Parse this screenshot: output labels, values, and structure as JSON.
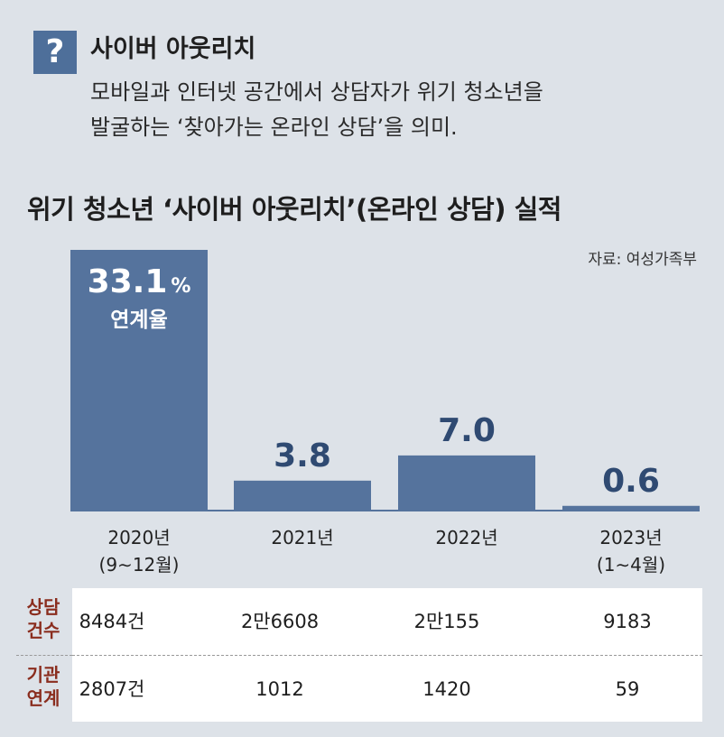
{
  "explainer": {
    "icon_char": "?",
    "term": "사이버 아웃리치",
    "definition_line1": "모바일과 인터넷  공간에서 상담자가 위기 청소년을",
    "definition_line2": "발굴하는 ‘찾아가는 온라인 상담’을 의미."
  },
  "source": "자료: 여성가족부",
  "chart_data": {
    "type": "bar",
    "title": "위기 청소년 ‘사이버 아웃리치’(온라인 상담) 실적",
    "categories": [
      [
        "2020년",
        "(9∼12월)"
      ],
      [
        "2021년"
      ],
      [
        "2022년"
      ],
      [
        "2023년",
        "(1∼4월)"
      ]
    ],
    "values": [
      33.1,
      3.8,
      7.0,
      0.6
    ],
    "value_labels": [
      "33.1",
      "3.8",
      "7.0",
      "0.6"
    ],
    "unit_first": "%",
    "first_bar_sublabel": "연계율",
    "ylim": [
      0,
      33.1
    ],
    "grid": false,
    "colors": {
      "bar": "#55739d",
      "label": "#2f4a72"
    }
  },
  "table": {
    "rows": [
      {
        "label": [
          "상담",
          "건수"
        ],
        "values": [
          "8484건",
          "2만6608",
          "2만155",
          "9183"
        ]
      },
      {
        "label": [
          "기관",
          "연계"
        ],
        "values": [
          "2807건",
          "1012",
          "1420",
          "59"
        ]
      }
    ],
    "label_color": "#8a2d1e"
  }
}
